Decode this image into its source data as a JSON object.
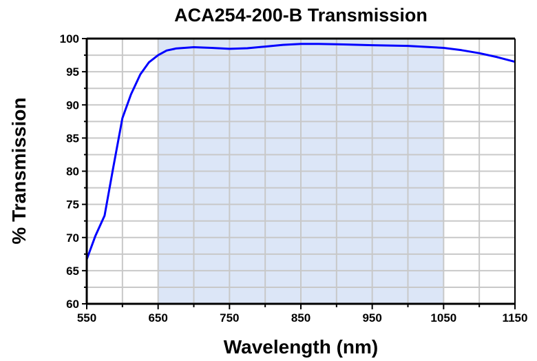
{
  "chart_data": {
    "type": "line",
    "title": "ACA254-200-B Transmission",
    "xlabel": "Wavelength (nm)",
    "ylabel": "% Transmission",
    "xlim": [
      550,
      1150
    ],
    "ylim": [
      60,
      100
    ],
    "xticks": [
      550,
      650,
      750,
      850,
      950,
      1050,
      1150
    ],
    "yticks": [
      60,
      65,
      70,
      75,
      80,
      85,
      90,
      95,
      100
    ],
    "grid": true,
    "shaded_band": {
      "x_range": [
        650,
        1050
      ],
      "color": "#dce6f7"
    },
    "series": [
      {
        "color": "#0000ff",
        "x": [
          550,
          562,
          575,
          587,
          600,
          612,
          625,
          637,
          650,
          662,
          675,
          700,
          725,
          750,
          775,
          800,
          825,
          850,
          875,
          900,
          950,
          1000,
          1050,
          1075,
          1100,
          1125,
          1150
        ],
        "y": [
          66.7,
          70.2,
          73.3,
          80.5,
          88.0,
          91.6,
          94.6,
          96.4,
          97.5,
          98.2,
          98.5,
          98.7,
          98.6,
          98.45,
          98.55,
          98.8,
          99.05,
          99.2,
          99.2,
          99.15,
          99.0,
          98.9,
          98.6,
          98.25,
          97.8,
          97.2,
          96.5
        ]
      }
    ]
  }
}
